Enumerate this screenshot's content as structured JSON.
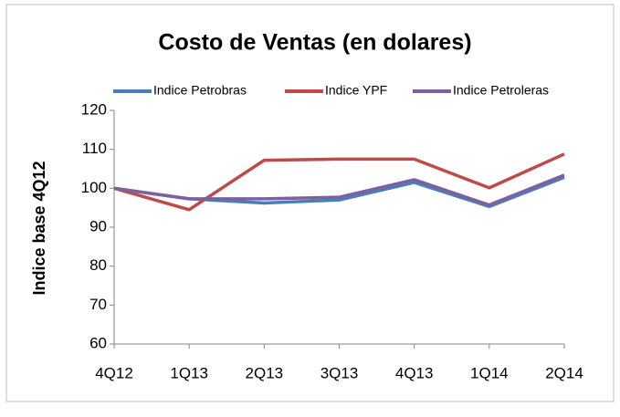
{
  "chart_data": {
    "type": "line",
    "title": "Costo de Ventas (en dolares)",
    "y_label": "Indice base 4Q12",
    "categories": [
      "4Q12",
      "1Q13",
      "2Q13",
      "3Q13",
      "4Q13",
      "1Q14",
      "2Q14"
    ],
    "series": [
      {
        "name": "Indice Petrobras",
        "color": "#4a7ebb",
        "values": [
          100,
          97.3,
          96.2,
          97.0,
          101.5,
          95.3,
          102.8
        ]
      },
      {
        "name": "Indice YPF",
        "color": "#be4b48",
        "values": [
          100,
          94.5,
          107.2,
          107.5,
          107.5,
          100.1,
          108.8
        ]
      },
      {
        "name": "Indice Petroleras",
        "color": "#7d60a0",
        "values": [
          100,
          97.3,
          97.3,
          97.7,
          102.2,
          95.7,
          103.4
        ]
      }
    ],
    "ylim": [
      60,
      120
    ],
    "yticks": [
      60,
      70,
      80,
      90,
      100,
      110,
      120
    ],
    "grid": false,
    "legend": "top"
  }
}
